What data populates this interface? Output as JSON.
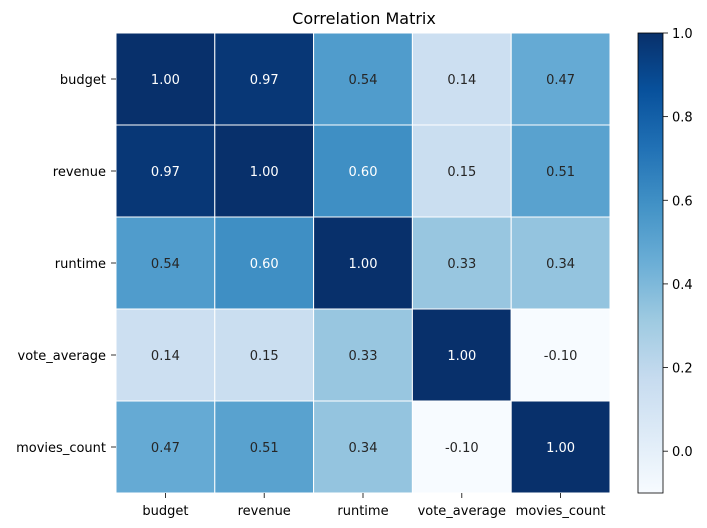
{
  "chart_data": {
    "type": "heatmap",
    "title": "Correlation Matrix",
    "xlabel": "",
    "ylabel": "",
    "row_labels": [
      "budget",
      "revenue",
      "runtime",
      "vote_average",
      "movies_count"
    ],
    "col_labels": [
      "budget",
      "revenue",
      "runtime",
      "vote_average",
      "movies_count"
    ],
    "values": [
      [
        1.0,
        0.97,
        0.54,
        0.14,
        0.47
      ],
      [
        0.97,
        1.0,
        0.6,
        0.15,
        0.51
      ],
      [
        0.54,
        0.6,
        1.0,
        0.33,
        0.34
      ],
      [
        0.14,
        0.15,
        0.33,
        1.0,
        -0.1
      ],
      [
        0.47,
        0.51,
        0.34,
        -0.1,
        1.0
      ]
    ],
    "value_format": "0.00",
    "colormap": "Blues",
    "vmin": -0.1,
    "vmax": 1.0,
    "colorbar_ticks": [
      0.0,
      0.2,
      0.4,
      0.6,
      0.8,
      1.0
    ],
    "colorbar_tick_labels": [
      "0.0",
      "0.2",
      "0.4",
      "0.6",
      "0.8",
      "1.0"
    ],
    "cell_gridlines": "white",
    "colorbar_position": "right"
  }
}
